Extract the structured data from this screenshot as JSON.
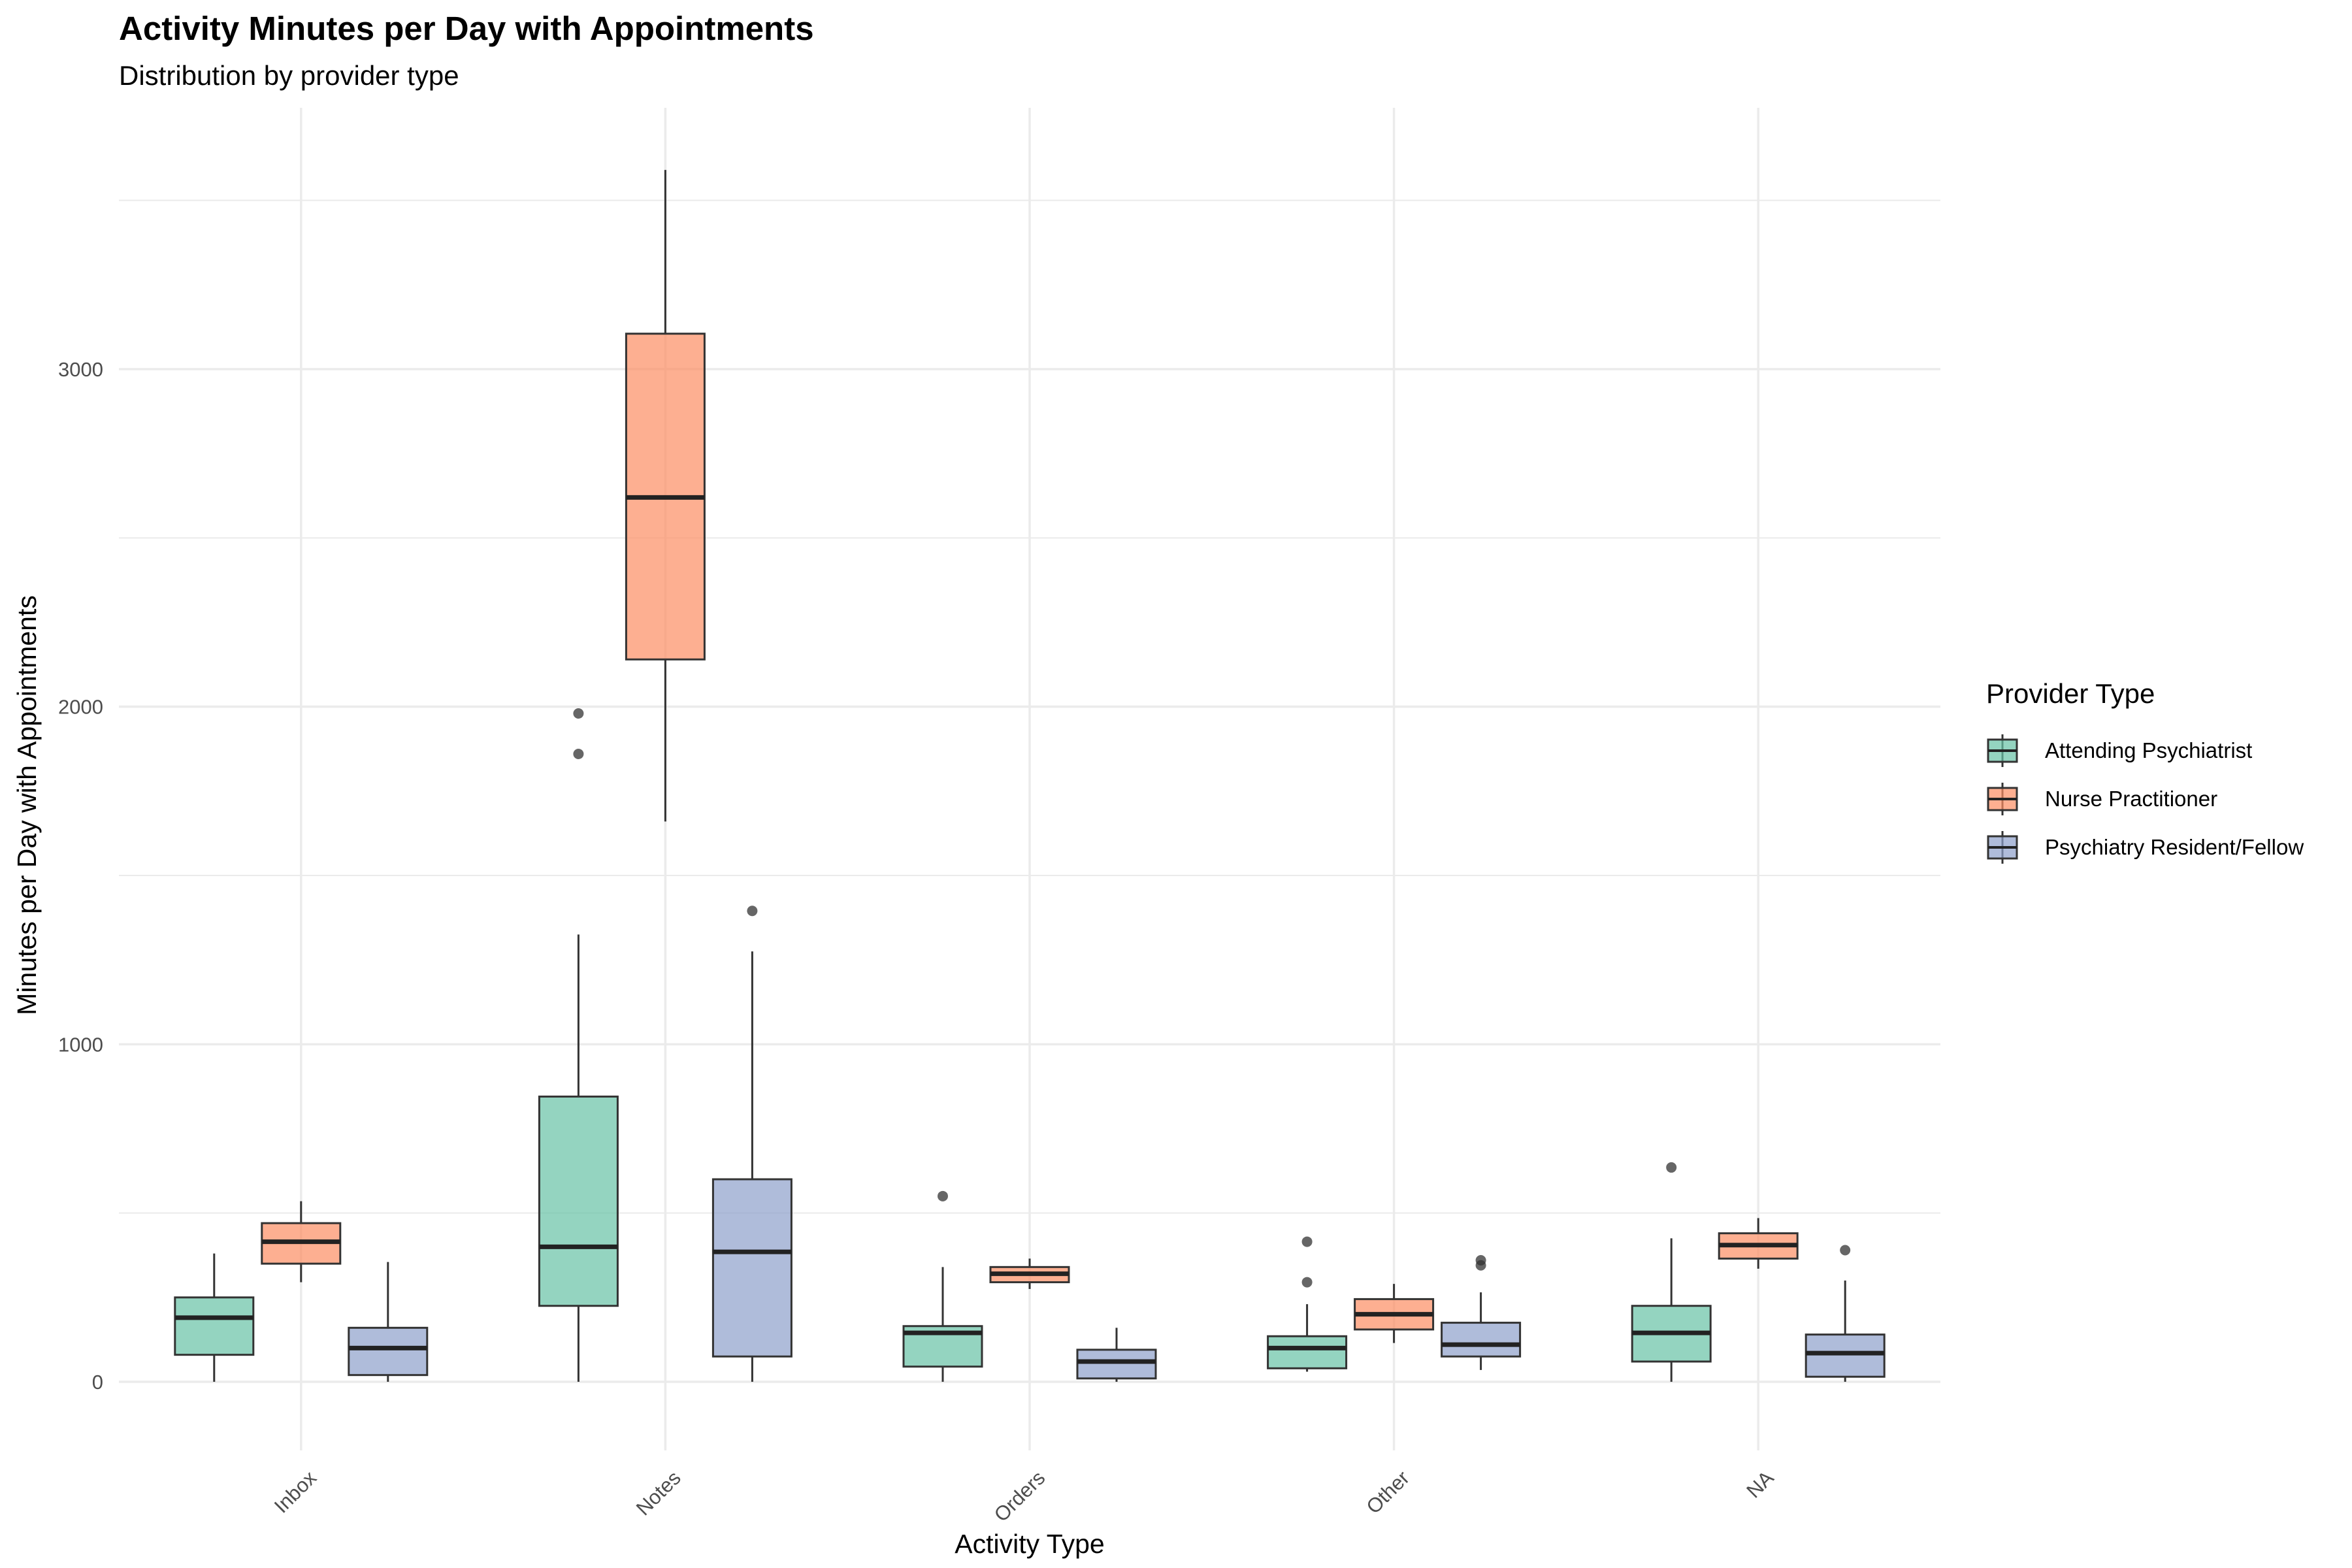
{
  "chart_data": {
    "type": "box",
    "title": "Activity Minutes per Day with Appointments",
    "subtitle": "Distribution by provider type",
    "xlabel": "Activity Type",
    "ylabel": "Minutes per Day with Appointments",
    "ylim": [
      -200,
      3780
    ],
    "yticks": [
      0,
      1000,
      2000,
      3000
    ],
    "grid": true,
    "legend_position": "right",
    "legend_title": "Provider Type",
    "categories": [
      "Inbox",
      "Notes",
      "Orders",
      "Other",
      "NA"
    ],
    "series": [
      {
        "name": "Attending Psychiatrist",
        "color": "#66c2a5",
        "boxes": [
          {
            "category": "Inbox",
            "min": 0,
            "q1": 80,
            "median": 190,
            "q3": 250,
            "max": 380,
            "outliers": []
          },
          {
            "category": "Notes",
            "min": 0,
            "q1": 225,
            "median": 400,
            "q3": 845,
            "max": 1325,
            "outliers": [
              1860,
              1980
            ]
          },
          {
            "category": "Orders",
            "min": 0,
            "q1": 45,
            "median": 145,
            "q3": 165,
            "max": 340,
            "outliers": [
              550
            ]
          },
          {
            "category": "Other",
            "min": 30,
            "q1": 40,
            "median": 100,
            "q3": 135,
            "max": 230,
            "outliers": [
              295,
              415
            ]
          },
          {
            "category": "NA",
            "min": 0,
            "q1": 60,
            "median": 145,
            "q3": 225,
            "max": 425,
            "outliers": [
              635
            ]
          }
        ]
      },
      {
        "name": "Nurse Practitioner",
        "color": "#fc8d62",
        "boxes": [
          {
            "category": "Inbox",
            "min": 295,
            "q1": 350,
            "median": 415,
            "q3": 470,
            "max": 535,
            "outliers": []
          },
          {
            "category": "Notes",
            "min": 1660,
            "q1": 2140,
            "median": 2620,
            "q3": 3105,
            "max": 3590,
            "outliers": []
          },
          {
            "category": "Orders",
            "min": 275,
            "q1": 295,
            "median": 320,
            "q3": 340,
            "max": 365,
            "outliers": []
          },
          {
            "category": "Other",
            "min": 115,
            "q1": 155,
            "median": 200,
            "q3": 245,
            "max": 290,
            "outliers": []
          },
          {
            "category": "NA",
            "min": 335,
            "q1": 365,
            "median": 405,
            "q3": 440,
            "max": 485,
            "outliers": []
          }
        ]
      },
      {
        "name": "Psychiatry Resident/Fellow",
        "color": "#8da0cb",
        "boxes": [
          {
            "category": "Inbox",
            "min": 0,
            "q1": 20,
            "median": 100,
            "q3": 160,
            "max": 355,
            "outliers": []
          },
          {
            "category": "Notes",
            "min": 0,
            "q1": 75,
            "median": 385,
            "q3": 600,
            "max": 1275,
            "outliers": [
              1395
            ]
          },
          {
            "category": "Orders",
            "min": 0,
            "q1": 10,
            "median": 60,
            "q3": 95,
            "max": 160,
            "outliers": []
          },
          {
            "category": "Other",
            "min": 35,
            "q1": 75,
            "median": 110,
            "q3": 175,
            "max": 265,
            "outliers": [
              345,
              360
            ]
          },
          {
            "category": "NA",
            "min": 0,
            "q1": 15,
            "median": 85,
            "q3": 140,
            "max": 300,
            "outliers": [
              390
            ]
          }
        ]
      }
    ]
  }
}
